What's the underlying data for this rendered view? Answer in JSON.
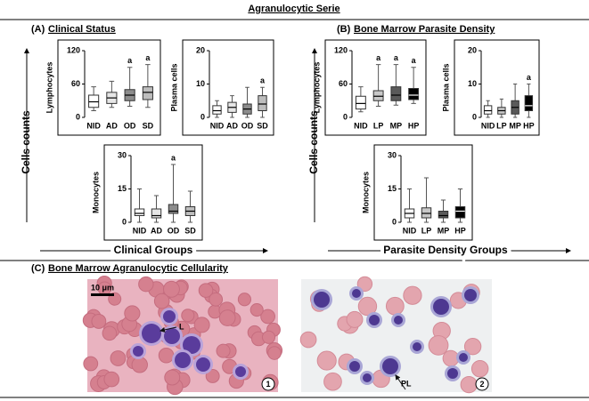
{
  "title": "Agranulocytic Serie",
  "panels": [
    {
      "label": "(A)",
      "heading": "Clinical Status",
      "y_label": "Cells counts",
      "x_label": "Clinical Groups"
    },
    {
      "label": "(B)",
      "heading": "Bone Marrow Parasite Density",
      "y_label": "Cells counts",
      "x_label": "Parasite Density Groups"
    },
    {
      "label": "(C)",
      "heading": "Bone Marrow Agranulocytic Cellularity"
    }
  ],
  "micrographs": {
    "scale_bar": "10 μm",
    "cell_labels": [
      "L",
      "PL"
    ],
    "numbers": [
      "1",
      "2"
    ]
  },
  "chart_data": [
    {
      "type": "box",
      "y_label": "Lymphocytes",
      "categories": [
        "NID",
        "AD",
        "OD",
        "SD"
      ],
      "colors": [
        "#ffffff",
        "#e6e6e6",
        "#8c8c8c",
        "#bdbdbd"
      ],
      "ylim": [
        0,
        120
      ],
      "yticks": [
        0,
        60,
        120
      ],
      "min": [
        12,
        18,
        20,
        18
      ],
      "q1": [
        18,
        25,
        30,
        32
      ],
      "median": [
        28,
        35,
        40,
        45
      ],
      "q3": [
        40,
        45,
        50,
        55
      ],
      "max": [
        55,
        65,
        90,
        95
      ],
      "annotations": [
        null,
        null,
        "a",
        "a"
      ]
    },
    {
      "type": "box",
      "y_label": "Plasma cells",
      "categories": [
        "NID",
        "AD",
        "OD",
        "SD"
      ],
      "colors": [
        "#ffffff",
        "#e6e6e6",
        "#8c8c8c",
        "#bdbdbd"
      ],
      "ylim": [
        0,
        20
      ],
      "yticks": [
        0,
        10,
        20
      ],
      "min": [
        0,
        0,
        0,
        0
      ],
      "q1": [
        1,
        1.5,
        1,
        2
      ],
      "median": [
        2,
        3,
        2.5,
        4
      ],
      "q3": [
        3.5,
        4.5,
        4,
        6.5
      ],
      "max": [
        5,
        6.5,
        9,
        9
      ],
      "annotations": [
        null,
        null,
        null,
        "a"
      ]
    },
    {
      "type": "box",
      "y_label": "Monocytes",
      "categories": [
        "NID",
        "AD",
        "OD",
        "SD"
      ],
      "colors": [
        "#ffffff",
        "#e6e6e6",
        "#8c8c8c",
        "#bdbdbd"
      ],
      "ylim": [
        0,
        30
      ],
      "yticks": [
        0,
        15,
        30
      ],
      "min": [
        0,
        0,
        0,
        0
      ],
      "q1": [
        3,
        2,
        4,
        3
      ],
      "median": [
        4,
        3,
        5,
        5
      ],
      "q3": [
        6,
        6,
        8,
        7
      ],
      "max": [
        15,
        12,
        26,
        14
      ],
      "annotations": [
        null,
        null,
        "a",
        null
      ]
    },
    {
      "type": "box",
      "y_label": "Lymphocytes",
      "categories": [
        "NID",
        "LP",
        "MP",
        "HP"
      ],
      "colors": [
        "#ffffff",
        "#c8c8c8",
        "#5a5a5a",
        "#000000"
      ],
      "ylim": [
        0,
        120
      ],
      "yticks": [
        0,
        60,
        120
      ],
      "min": [
        10,
        20,
        22,
        25
      ],
      "q1": [
        15,
        30,
        30,
        32
      ],
      "median": [
        25,
        38,
        40,
        40
      ],
      "q3": [
        38,
        48,
        55,
        52
      ],
      "max": [
        55,
        95,
        95,
        90
      ],
      "annotations": [
        null,
        "a",
        "a",
        "a"
      ]
    },
    {
      "type": "box",
      "y_label": "Plasma cells",
      "categories": [
        "NID",
        "LP",
        "MP",
        "HP"
      ],
      "colors": [
        "#ffffff",
        "#c8c8c8",
        "#5a5a5a",
        "#000000"
      ],
      "ylim": [
        0,
        20
      ],
      "yticks": [
        0,
        10,
        20
      ],
      "min": [
        0,
        0,
        0,
        0
      ],
      "q1": [
        1,
        1,
        1,
        2
      ],
      "median": [
        2,
        2,
        3,
        3.5
      ],
      "q3": [
        3.5,
        3,
        5,
        6.5
      ],
      "max": [
        5,
        5.5,
        10,
        10
      ],
      "annotations": [
        null,
        null,
        null,
        "a"
      ]
    },
    {
      "type": "box",
      "y_label": "Monocytes",
      "categories": [
        "NID",
        "LP",
        "MP",
        "HP"
      ],
      "colors": [
        "#ffffff",
        "#c8c8c8",
        "#5a5a5a",
        "#000000"
      ],
      "ylim": [
        0,
        30
      ],
      "yticks": [
        0,
        15,
        30
      ],
      "min": [
        0,
        0,
        0,
        0
      ],
      "q1": [
        2,
        2,
        2,
        2
      ],
      "median": [
        4,
        4,
        3,
        5
      ],
      "q3": [
        6,
        6.5,
        5,
        7
      ],
      "max": [
        15,
        20,
        10,
        15
      ],
      "annotations": [
        null,
        null,
        null,
        null
      ]
    }
  ]
}
